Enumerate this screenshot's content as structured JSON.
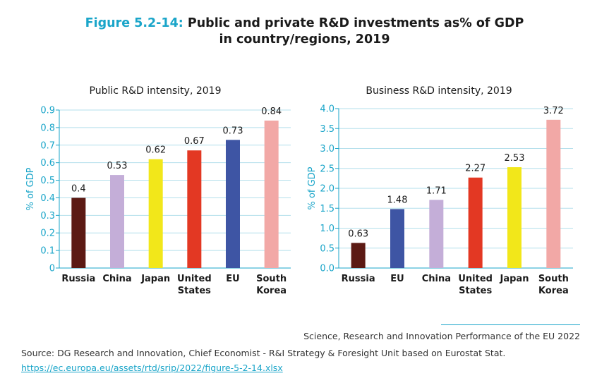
{
  "figure": {
    "label": "Figure 5.2-14:",
    "title_line1": "Public and private R&D investments as% of GDP",
    "title_line2": "in country/regions, 2019"
  },
  "chart_data": [
    {
      "type": "bar",
      "title": "Public R&D intensity, 2019",
      "ylabel": "% of GDP",
      "xlabel": "",
      "ylim": [
        0,
        0.9
      ],
      "yticks": [
        0,
        0.1,
        0.2,
        0.3,
        0.4,
        0.5,
        0.6,
        0.7,
        0.8,
        0.9
      ],
      "ytick_labels": [
        "0",
        "0.1",
        "0.2",
        "0.3",
        "0.4",
        "0.5",
        "0.6",
        "0.7",
        "0.8",
        "0.9"
      ],
      "categories": [
        [
          "Russia"
        ],
        [
          "China"
        ],
        [
          "Japan"
        ],
        [
          "United",
          "States"
        ],
        [
          "EU"
        ],
        [
          "South",
          "Korea"
        ]
      ],
      "values": [
        0.4,
        0.53,
        0.62,
        0.67,
        0.73,
        0.84
      ],
      "value_labels": [
        "0.4",
        "0.53",
        "0.62",
        "0.67",
        "0.73",
        "0.84"
      ],
      "colors": [
        "#5c1a14",
        "#c4aed8",
        "#f2e71a",
        "#e33823",
        "#3e55a4",
        "#f2a8a6"
      ],
      "grid": true
    },
    {
      "type": "bar",
      "title": "Business R&D intensity, 2019",
      "ylabel": "% of GDP",
      "xlabel": "",
      "ylim": [
        0,
        4.0
      ],
      "yticks": [
        0,
        0.5,
        1.0,
        1.5,
        2.0,
        2.5,
        3.0,
        3.5,
        4.0
      ],
      "ytick_labels": [
        "0.0",
        "0.5",
        "1.0",
        "1.5",
        "2.0",
        "2.5",
        "3.0",
        "3.5",
        "4.0"
      ],
      "categories": [
        [
          "Russia"
        ],
        [
          "EU"
        ],
        [
          "China"
        ],
        [
          "United",
          "States"
        ],
        [
          "Japan"
        ],
        [
          "South",
          "Korea"
        ]
      ],
      "values": [
        0.63,
        1.48,
        1.71,
        2.27,
        2.53,
        3.72
      ],
      "value_labels": [
        "0.63",
        "1.48",
        "1.71",
        "2.27",
        "2.53",
        "3.72"
      ],
      "colors": [
        "#5c1a14",
        "#3e55a4",
        "#c4aed8",
        "#e33823",
        "#f2e71a",
        "#f2a8a6"
      ],
      "grid": true
    }
  ],
  "footer": {
    "publication": "Science, Research and Innovation Performance of the EU 2022",
    "source_text": "Source: DG Research and Innovation, Chief Economist - R&I Strategy & Foresight Unit based on Eurostat Stat.",
    "source_link": "https://ec.europa.eu/assets/rtd/srip/2022/figure-5-2-14.xlsx"
  },
  "colors": {
    "accent": "#1aa5c9",
    "grid": "#b3dfeb",
    "text": "#1a1a1a"
  }
}
